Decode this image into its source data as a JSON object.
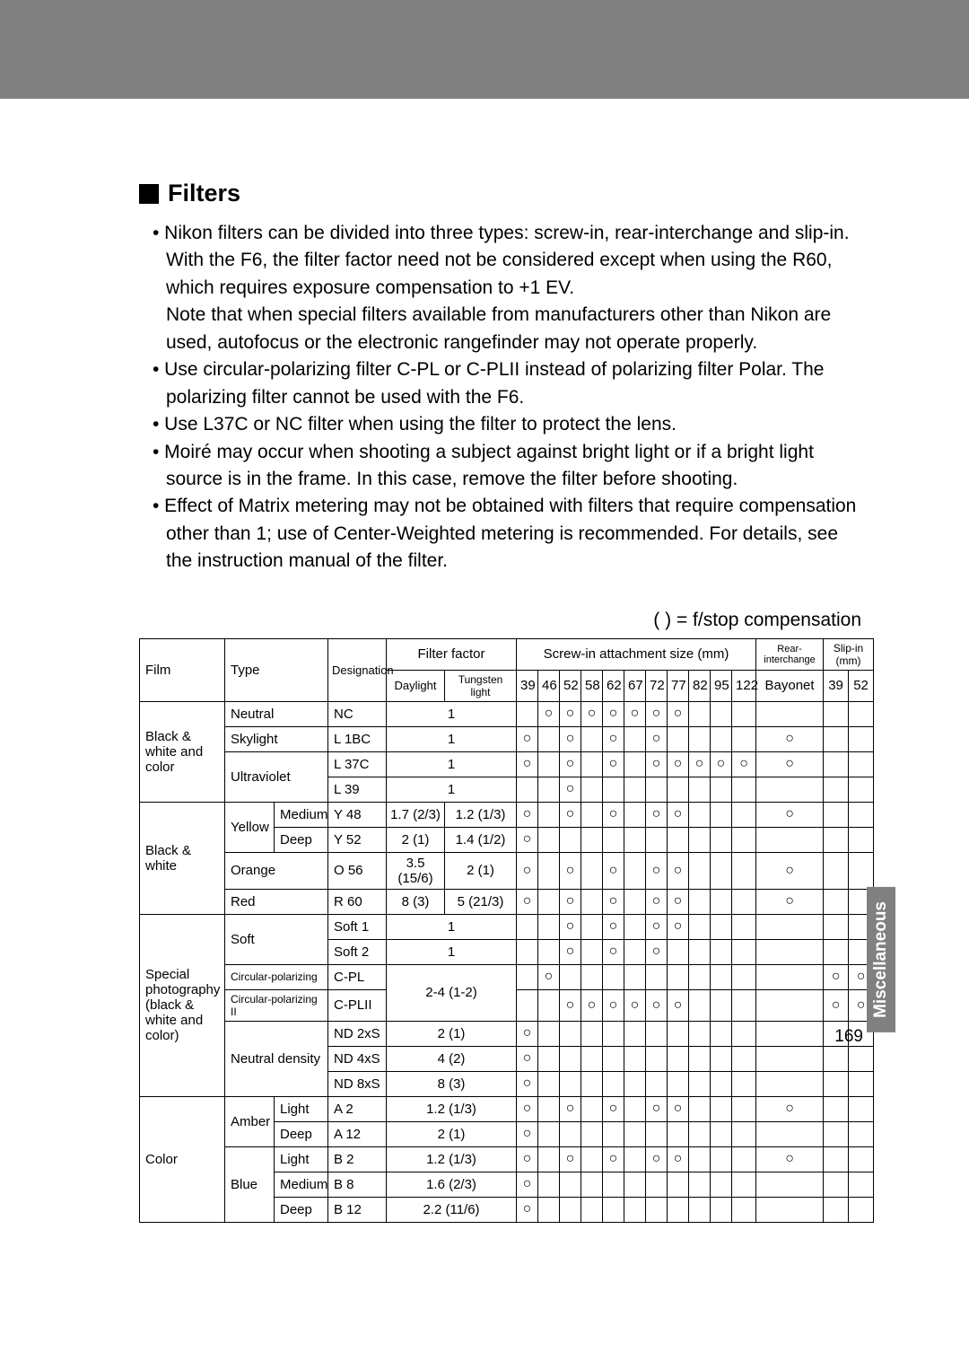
{
  "section_title": "Filters",
  "legend": "(   ) = f/stop compensation",
  "side_tab": "Miscellaneous",
  "page_number": "169",
  "bullets": [
    "• Nikon filters can be divided into three types: screw-in, rear-interchange and slip-in. With the F6, the filter factor need not be considered except when using the R60, which requires exposure compensation to +1 EV.",
    "Note that when special filters available from manufacturers other than Nikon are used, autofocus or the electronic rangefinder may not operate properly.",
    "• Use circular-polarizing filter C-PL or C-PLII instead of polarizing filter Polar. The polarizing filter cannot be used with the F6.",
    "• Use L37C or NC filter when using the filter to protect the lens.",
    "• Moiré may occur when shooting a subject against bright light or if a bright light source is in the frame. In this case, remove the filter before shooting.",
    "• Effect of Matrix metering may not be obtained with filters that require compensation other than 1; use of Center-Weighted metering is recommended. For details, see the instruction manual of the filter."
  ],
  "table": {
    "head": {
      "film": "Film",
      "type": "Type",
      "designation": "Designation",
      "filter_factor": "Filter factor",
      "screw_in": "Screw-in attachment size (mm)",
      "rear": "Rear-interchange",
      "slip": "Slip-in (mm)",
      "daylight": "Daylight",
      "tungsten": "Tungsten light",
      "sizes": [
        "39",
        "46",
        "52",
        "58",
        "62",
        "67",
        "72",
        "77",
        "82",
        "95",
        "122"
      ],
      "bayonet": "Bayonet",
      "s39": "39",
      "s52": "52"
    },
    "rows": [
      {
        "film": "Black & white and color",
        "film_rows": 4,
        "type": "Neutral",
        "type_cols": 2,
        "desig": "NC",
        "ff": "1",
        "ff_cols": 2,
        "m": {
          "46": 1,
          "52": 1,
          "58": 1,
          "62": 1,
          "67": 1,
          "72": 1,
          "77": 1
        }
      },
      {
        "type": "Skylight",
        "type_cols": 2,
        "desig": "L 1BC",
        "ff": "1",
        "ff_cols": 2,
        "m": {
          "39": 1,
          "52": 1,
          "62": 1,
          "72": 1,
          "bay": 1
        }
      },
      {
        "type": "Ultraviolet",
        "type_cols": 2,
        "type_rows": 2,
        "desig": "L 37C",
        "ff": "1",
        "ff_cols": 2,
        "m": {
          "39": 1,
          "52": 1,
          "62": 1,
          "72": 1,
          "77": 1,
          "82": 1,
          "95": 1,
          "122": 1,
          "bay": 1
        }
      },
      {
        "desig": "L 39",
        "ff": "1",
        "ff_cols": 2,
        "m": {
          "52": 1
        }
      },
      {
        "film": "Black & white",
        "film_rows": 4,
        "type": "Yellow",
        "type_rows": 2,
        "sub": "Medium",
        "desig": "Y 48",
        "d": "1.7 (2/3)",
        "t": "1.2 (1/3)",
        "m": {
          "39": 1,
          "52": 1,
          "62": 1,
          "72": 1,
          "77": 1,
          "bay": 1
        }
      },
      {
        "sub": "Deep",
        "desig": "Y 52",
        "d": "2 (1)",
        "t": "1.4 (1/2)",
        "m": {
          "39": 1
        }
      },
      {
        "type": "Orange",
        "type_cols": 2,
        "desig": "O 56",
        "d": "3.5 (15/6)",
        "t": "2 (1)",
        "m": {
          "39": 1,
          "52": 1,
          "62": 1,
          "72": 1,
          "77": 1,
          "bay": 1
        }
      },
      {
        "type": "Red",
        "type_cols": 2,
        "desig": "R 60",
        "d": "8 (3)",
        "t": "5 (21/3)",
        "m": {
          "39": 1,
          "52": 1,
          "62": 1,
          "72": 1,
          "77": 1,
          "bay": 1
        }
      },
      {
        "film": "Special photography (black & white and color)",
        "film_rows": 7,
        "type": "Soft",
        "type_cols": 2,
        "type_rows": 2,
        "desig": "Soft 1",
        "ff": "1",
        "ff_cols": 2,
        "m": {
          "52": 1,
          "62": 1,
          "72": 1,
          "77": 1
        }
      },
      {
        "desig": "Soft 2",
        "ff": "1",
        "ff_cols": 2,
        "m": {
          "52": 1,
          "62": 1,
          "72": 1
        }
      },
      {
        "type": "Circular-polarizing",
        "type_cols": 2,
        "desig": "C-PL",
        "ff": "2-4 (1-2)",
        "ff_cols": 2,
        "ff_rows": 2,
        "m": {
          "46": 1,
          "s39": 1,
          "s52": 1
        }
      },
      {
        "type": "Circular-polarizing II",
        "type_cols": 2,
        "desig": "C-PLII",
        "m": {
          "52": 1,
          "58": 1,
          "62": 1,
          "67": 1,
          "72": 1,
          "77": 1,
          "s39": 1,
          "s52": 1
        }
      },
      {
        "type": "Neutral density",
        "type_cols": 2,
        "type_rows": 3,
        "desig": "ND 2xS",
        "ff": "2 (1)",
        "ff_cols": 2,
        "m": {
          "39": 1
        }
      },
      {
        "desig": "ND 4xS",
        "ff": "4 (2)",
        "ff_cols": 2,
        "m": {
          "39": 1
        }
      },
      {
        "desig": "ND 8xS",
        "ff": "8 (3)",
        "ff_cols": 2,
        "m": {
          "39": 1
        }
      },
      {
        "film": "Color",
        "film_rows": 5,
        "type": "Amber",
        "type_rows": 2,
        "sub": "Light",
        "desig": "A 2",
        "ff": "1.2 (1/3)",
        "ff_cols": 2,
        "m": {
          "39": 1,
          "52": 1,
          "62": 1,
          "72": 1,
          "77": 1,
          "bay": 1
        }
      },
      {
        "sub": "Deep",
        "desig": "A 12",
        "ff": "2 (1)",
        "ff_cols": 2,
        "m": {
          "39": 1
        }
      },
      {
        "type": "Blue",
        "type_rows": 3,
        "sub": "Light",
        "desig": "B 2",
        "ff": "1.2 (1/3)",
        "ff_cols": 2,
        "m": {
          "39": 1,
          "52": 1,
          "62": 1,
          "72": 1,
          "77": 1,
          "bay": 1
        }
      },
      {
        "sub": "Medium",
        "desig": "B 8",
        "ff": "1.6 (2/3)",
        "ff_cols": 2,
        "m": {
          "39": 1
        }
      },
      {
        "sub": "Deep",
        "desig": "B 12",
        "ff": "2.2 (11/6)",
        "ff_cols": 2,
        "m": {
          "39": 1
        }
      }
    ]
  }
}
